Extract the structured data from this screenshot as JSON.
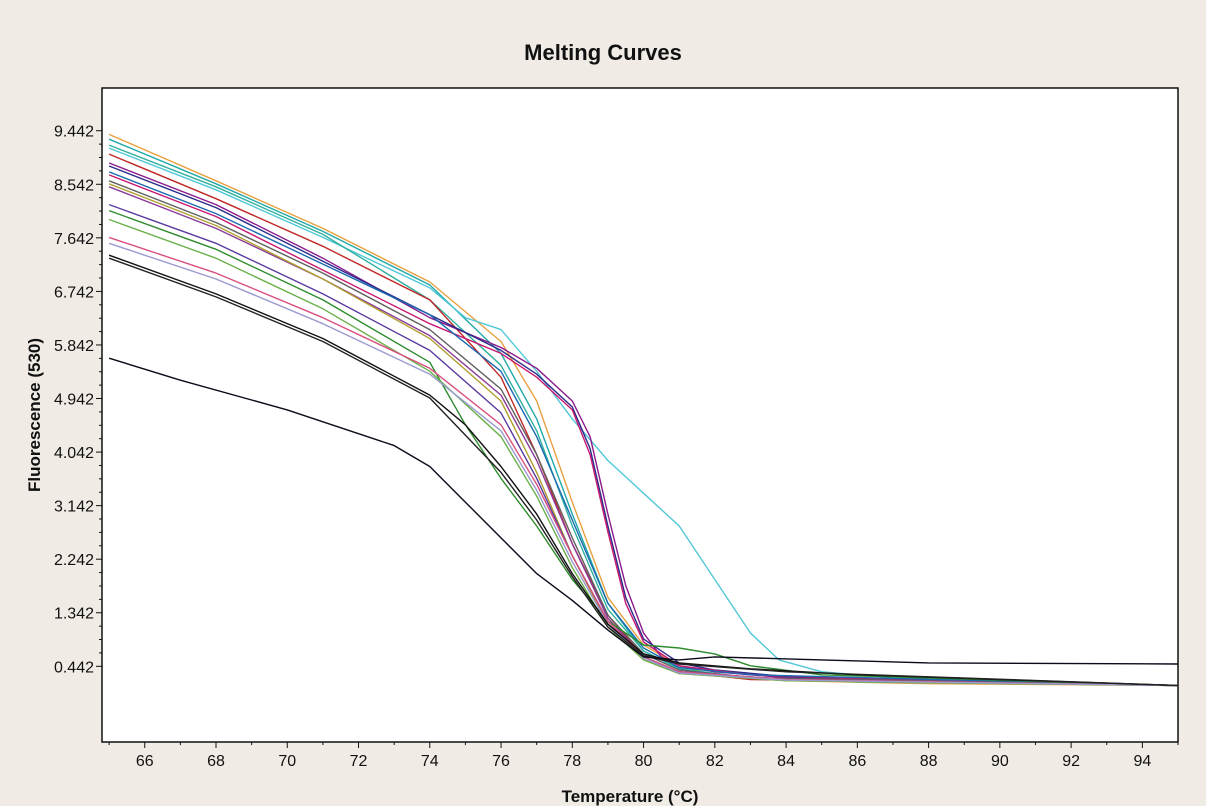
{
  "chart_data": {
    "type": "line",
    "title": "Melting Curves",
    "xlabel": "Temperature (°C)",
    "ylabel": "Fluorescence (530)",
    "xlim": [
      64.8,
      95
    ],
    "ylim": [
      -0.83,
      10.16
    ],
    "xticks": [
      66,
      68,
      70,
      72,
      74,
      76,
      78,
      80,
      82,
      84,
      86,
      88,
      90,
      92,
      94
    ],
    "yticks": [
      0.442,
      1.342,
      2.242,
      3.142,
      4.042,
      4.942,
      5.842,
      6.742,
      7.642,
      8.542,
      9.442
    ],
    "ytick_labels": [
      "0.442",
      "1.342",
      "2.242",
      "3.142",
      "4.042",
      "4.942",
      "5.842",
      "6.742",
      "7.642",
      "8.542",
      "9.442"
    ],
    "grid": false,
    "legend": "none",
    "series": [
      {
        "color": "#e8a040",
        "values": [
          [
            65,
            9.38
          ],
          [
            68,
            8.6
          ],
          [
            71,
            7.8
          ],
          [
            74,
            6.9
          ],
          [
            76,
            5.9
          ],
          [
            77,
            4.9
          ],
          [
            78,
            3.2
          ],
          [
            79,
            1.6
          ],
          [
            80,
            0.8
          ],
          [
            81,
            0.45
          ],
          [
            82,
            0.3
          ],
          [
            84,
            0.2
          ],
          [
            88,
            0.15
          ],
          [
            95,
            0.12
          ]
        ]
      },
      {
        "color": "#20a8a8",
        "values": [
          [
            65,
            9.3
          ],
          [
            68,
            8.55
          ],
          [
            71,
            7.75
          ],
          [
            74,
            6.85
          ],
          [
            76,
            5.7
          ],
          [
            77,
            4.6
          ],
          [
            78,
            3.0
          ],
          [
            79,
            1.5
          ],
          [
            80,
            0.7
          ],
          [
            81,
            0.4
          ],
          [
            82,
            0.28
          ],
          [
            86,
            0.18
          ],
          [
            95,
            0.12
          ]
        ]
      },
      {
        "color": "#50c8d8",
        "values": [
          [
            65,
            9.15
          ],
          [
            68,
            8.45
          ],
          [
            71,
            7.65
          ],
          [
            74,
            6.8
          ],
          [
            75,
            6.3
          ],
          [
            76,
            6.1
          ],
          [
            77,
            5.4
          ],
          [
            78,
            4.6
          ],
          [
            79,
            3.9
          ],
          [
            80,
            3.35
          ],
          [
            81,
            2.8
          ],
          [
            82,
            1.9
          ],
          [
            83,
            1.0
          ],
          [
            83.8,
            0.55
          ],
          [
            85,
            0.35
          ],
          [
            87,
            0.25
          ],
          [
            95,
            0.12
          ]
        ]
      },
      {
        "color": "#30b0a0",
        "values": [
          [
            65,
            9.2
          ],
          [
            68,
            8.5
          ],
          [
            71,
            7.7
          ],
          [
            74,
            6.6
          ],
          [
            76,
            5.5
          ],
          [
            77,
            4.4
          ],
          [
            78,
            2.8
          ],
          [
            79,
            1.4
          ],
          [
            80,
            0.7
          ],
          [
            81,
            0.4
          ],
          [
            83,
            0.25
          ],
          [
            95,
            0.12
          ]
        ]
      },
      {
        "color": "#c02828",
        "values": [
          [
            65,
            9.05
          ],
          [
            68,
            8.3
          ],
          [
            71,
            7.5
          ],
          [
            74,
            6.6
          ],
          [
            76,
            5.3
          ],
          [
            77,
            4.0
          ],
          [
            78,
            2.5
          ],
          [
            79,
            1.3
          ],
          [
            80,
            0.6
          ],
          [
            81,
            0.35
          ],
          [
            83,
            0.22
          ],
          [
            95,
            0.12
          ]
        ]
      },
      {
        "color": "#8b1a8b",
        "values": [
          [
            65,
            8.9
          ],
          [
            68,
            8.2
          ],
          [
            71,
            7.3
          ],
          [
            74,
            6.3
          ],
          [
            76,
            5.8
          ],
          [
            77,
            5.45
          ],
          [
            78,
            4.9
          ],
          [
            78.5,
            4.3
          ],
          [
            79,
            3.0
          ],
          [
            79.5,
            1.8
          ],
          [
            80,
            1.0
          ],
          [
            80.5,
            0.6
          ],
          [
            81,
            0.45
          ],
          [
            82,
            0.35
          ],
          [
            84,
            0.25
          ],
          [
            95,
            0.12
          ]
        ]
      },
      {
        "color": "#2a2a8a",
        "values": [
          [
            65,
            8.85
          ],
          [
            68,
            8.15
          ],
          [
            71,
            7.25
          ],
          [
            74,
            6.35
          ],
          [
            76,
            5.75
          ],
          [
            77,
            5.35
          ],
          [
            78,
            4.8
          ],
          [
            78.5,
            4.1
          ],
          [
            79,
            2.8
          ],
          [
            79.5,
            1.6
          ],
          [
            80,
            0.9
          ],
          [
            81,
            0.5
          ],
          [
            82,
            0.38
          ],
          [
            84,
            0.27
          ],
          [
            95,
            0.12
          ]
        ]
      },
      {
        "color": "#c81870",
        "values": [
          [
            65,
            8.7
          ],
          [
            68,
            8.0
          ],
          [
            71,
            7.1
          ],
          [
            74,
            6.2
          ],
          [
            76,
            5.7
          ],
          [
            77,
            5.3
          ],
          [
            78,
            4.75
          ],
          [
            78.5,
            4.0
          ],
          [
            79,
            2.7
          ],
          [
            79.5,
            1.5
          ],
          [
            80,
            0.85
          ],
          [
            81,
            0.45
          ],
          [
            83,
            0.3
          ],
          [
            88,
            0.2
          ],
          [
            95,
            0.12
          ]
        ]
      },
      {
        "color": "#1a6ab0",
        "values": [
          [
            65,
            8.75
          ],
          [
            68,
            8.05
          ],
          [
            71,
            7.2
          ],
          [
            74,
            6.35
          ],
          [
            76,
            5.4
          ],
          [
            77,
            4.3
          ],
          [
            78,
            2.9
          ],
          [
            79,
            1.5
          ],
          [
            80,
            0.75
          ],
          [
            81,
            0.42
          ],
          [
            83,
            0.3
          ],
          [
            95,
            0.12
          ]
        ]
      },
      {
        "color": "#606060",
        "values": [
          [
            65,
            8.6
          ],
          [
            68,
            7.9
          ],
          [
            71,
            7.05
          ],
          [
            74,
            6.1
          ],
          [
            76,
            5.1
          ],
          [
            77,
            4.0
          ],
          [
            78,
            2.6
          ],
          [
            79,
            1.3
          ],
          [
            80,
            0.65
          ],
          [
            81,
            0.38
          ],
          [
            83,
            0.25
          ],
          [
            95,
            0.12
          ]
        ]
      },
      {
        "color": "#8a3a9a",
        "values": [
          [
            65,
            8.5
          ],
          [
            68,
            7.8
          ],
          [
            71,
            6.95
          ],
          [
            74,
            6.0
          ],
          [
            76,
            5.0
          ],
          [
            77,
            3.9
          ],
          [
            78,
            2.5
          ],
          [
            79,
            1.25
          ],
          [
            80,
            0.6
          ],
          [
            81,
            0.35
          ],
          [
            84,
            0.22
          ],
          [
            95,
            0.12
          ]
        ]
      },
      {
        "color": "#b0a030",
        "values": [
          [
            65,
            8.55
          ],
          [
            68,
            7.85
          ],
          [
            71,
            6.95
          ],
          [
            74,
            5.95
          ],
          [
            76,
            4.9
          ],
          [
            77,
            3.7
          ],
          [
            78,
            2.3
          ],
          [
            79,
            1.15
          ],
          [
            80,
            0.55
          ],
          [
            81,
            0.32
          ],
          [
            84,
            0.2
          ],
          [
            95,
            0.12
          ]
        ]
      },
      {
        "color": "#5a3aa0",
        "values": [
          [
            65,
            8.2
          ],
          [
            68,
            7.55
          ],
          [
            71,
            6.7
          ],
          [
            74,
            5.75
          ],
          [
            76,
            4.7
          ],
          [
            77,
            3.6
          ],
          [
            78,
            2.3
          ],
          [
            79,
            1.2
          ],
          [
            80,
            0.6
          ],
          [
            81,
            0.35
          ],
          [
            84,
            0.22
          ],
          [
            95,
            0.12
          ]
        ]
      },
      {
        "color": "#2e8b2e",
        "values": [
          [
            65,
            8.1
          ],
          [
            68,
            7.45
          ],
          [
            71,
            6.6
          ],
          [
            74,
            5.55
          ],
          [
            75,
            4.5
          ],
          [
            76,
            3.6
          ],
          [
            77,
            2.8
          ],
          [
            78,
            1.9
          ],
          [
            79,
            1.2
          ],
          [
            80,
            0.8
          ],
          [
            81,
            0.75
          ],
          [
            82,
            0.65
          ],
          [
            83,
            0.45
          ],
          [
            85,
            0.3
          ],
          [
            95,
            0.12
          ]
        ]
      },
      {
        "color": "#6ab04a",
        "values": [
          [
            65,
            7.95
          ],
          [
            68,
            7.3
          ],
          [
            71,
            6.45
          ],
          [
            74,
            5.4
          ],
          [
            76,
            4.3
          ],
          [
            77,
            3.3
          ],
          [
            78,
            2.1
          ],
          [
            79,
            1.1
          ],
          [
            80,
            0.55
          ],
          [
            81,
            0.32
          ],
          [
            84,
            0.2
          ],
          [
            95,
            0.12
          ]
        ]
      },
      {
        "color": "#d85080",
        "values": [
          [
            65,
            7.65
          ],
          [
            68,
            7.05
          ],
          [
            71,
            6.3
          ],
          [
            74,
            5.45
          ],
          [
            76,
            4.5
          ],
          [
            77,
            3.5
          ],
          [
            78,
            2.3
          ],
          [
            79,
            1.2
          ],
          [
            80,
            0.6
          ],
          [
            81,
            0.35
          ],
          [
            84,
            0.22
          ],
          [
            95,
            0.12
          ]
        ]
      },
      {
        "color": "#9a9ad0",
        "values": [
          [
            65,
            7.55
          ],
          [
            68,
            6.95
          ],
          [
            71,
            6.2
          ],
          [
            74,
            5.35
          ],
          [
            76,
            4.4
          ],
          [
            77,
            3.4
          ],
          [
            78,
            2.2
          ],
          [
            79,
            1.15
          ],
          [
            80,
            0.58
          ],
          [
            81,
            0.33
          ],
          [
            84,
            0.21
          ],
          [
            95,
            0.12
          ]
        ]
      },
      {
        "color": "#111111",
        "values": [
          [
            65,
            7.35
          ],
          [
            68,
            6.7
          ],
          [
            71,
            5.95
          ],
          [
            74,
            5.0
          ],
          [
            75,
            4.5
          ],
          [
            76,
            3.8
          ],
          [
            77,
            3.0
          ],
          [
            78,
            2.0
          ],
          [
            79,
            1.15
          ],
          [
            80,
            0.65
          ],
          [
            81,
            0.5
          ],
          [
            83,
            0.4
          ],
          [
            86,
            0.3
          ],
          [
            95,
            0.12
          ]
        ]
      },
      {
        "color": "#222222",
        "values": [
          [
            65,
            7.3
          ],
          [
            68,
            6.65
          ],
          [
            71,
            5.9
          ],
          [
            74,
            4.95
          ],
          [
            76,
            3.7
          ],
          [
            77,
            2.9
          ],
          [
            78,
            1.95
          ],
          [
            79,
            1.1
          ],
          [
            80,
            0.62
          ],
          [
            81,
            0.48
          ],
          [
            84,
            0.35
          ],
          [
            95,
            0.12
          ]
        ]
      },
      {
        "color": "#0a0a1a",
        "values": [
          [
            65,
            5.62
          ],
          [
            67,
            5.25
          ],
          [
            70,
            4.75
          ],
          [
            73,
            4.15
          ],
          [
            74,
            3.8
          ],
          [
            75,
            3.2
          ],
          [
            76,
            2.6
          ],
          [
            77,
            2.0
          ],
          [
            78,
            1.55
          ],
          [
            79,
            1.05
          ],
          [
            80,
            0.6
          ],
          [
            81,
            0.55
          ],
          [
            82,
            0.6
          ],
          [
            85,
            0.55
          ],
          [
            88,
            0.5
          ],
          [
            95,
            0.48
          ]
        ]
      }
    ]
  }
}
